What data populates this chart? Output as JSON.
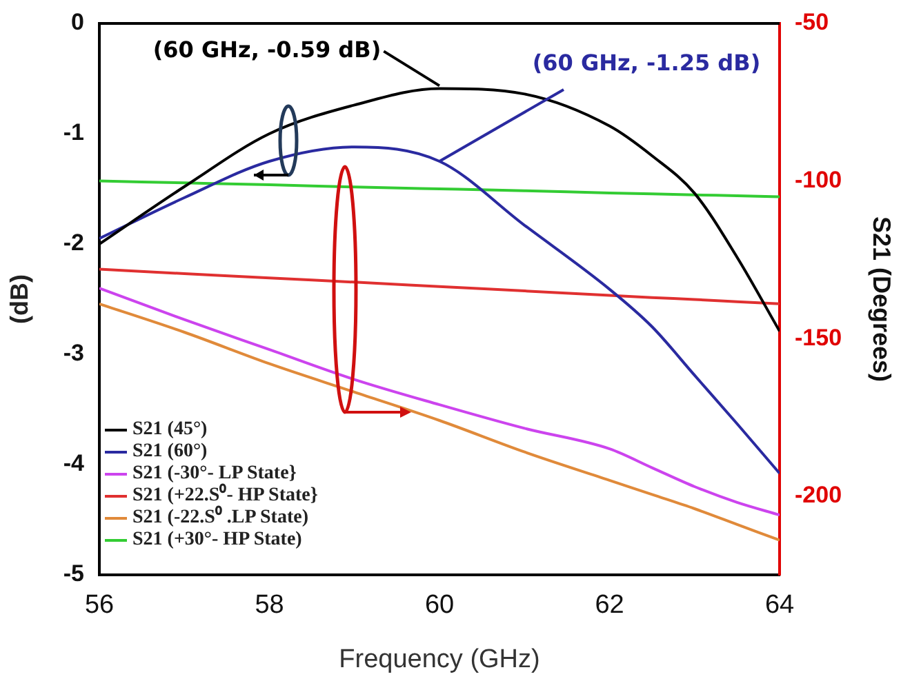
{
  "chart_data": {
    "type": "line",
    "xlabel": "Frequency (GHz)",
    "ylabel": "(dB)",
    "y2label": "S21 (Degrees)",
    "x": [
      56,
      57,
      58,
      59,
      60,
      61,
      62,
      62.5,
      63,
      63.5,
      64
    ],
    "xlim": [
      56,
      64
    ],
    "xticks": [
      56,
      58,
      60,
      62,
      64
    ],
    "ylim": [
      -5,
      0
    ],
    "yticks": [
      0,
      -1,
      -2,
      -3,
      -4,
      -5
    ],
    "y2lim": [
      -225,
      -50
    ],
    "y2ticks": [
      -50,
      -100,
      -150,
      -200
    ],
    "grid": false,
    "legend": "bottom left",
    "marker": "none",
    "line_style": "solid",
    "series": [
      {
        "name": "S21 (45°)",
        "color": "#000000",
        "values": [
          -2.0,
          -1.48,
          -1.0,
          -0.74,
          -0.59,
          -0.64,
          -0.93,
          -1.2,
          -1.54,
          -2.12,
          -2.79
        ]
      },
      {
        "name": "S21 (60°)",
        "color": "#2a2aa0",
        "values": [
          -1.95,
          -1.58,
          -1.25,
          -1.12,
          -1.25,
          -1.83,
          -2.41,
          -2.75,
          -3.19,
          -3.63,
          -4.08
        ]
      },
      {
        "name": "S21 (-30°- LP State}",
        "color": "#cc44ee",
        "axis": "y2",
        "values": [
          -134,
          -144,
          -153.5,
          -163,
          -171,
          -178.5,
          -185,
          -191,
          -197,
          -202,
          -206
        ]
      },
      {
        "name": "S21 (+22.S⁰- HP State}",
        "color": "#e03030",
        "axis": "y2",
        "values": [
          -128,
          -129.4,
          -130.8,
          -132.1,
          -133.5,
          -134.9,
          -136.3,
          -137,
          -137.6,
          -138.3,
          -139
        ]
      },
      {
        "name": "S21 (-22.S⁰ .LP State)",
        "color": "#e08a3a",
        "axis": "y2",
        "values": [
          -139,
          -148,
          -158,
          -167,
          -176,
          -186,
          -195,
          -199.5,
          -204,
          -209,
          -214
        ]
      },
      {
        "name": "S21 (+30°- HP State)",
        "color": "#33cc33",
        "axis": "y2",
        "values": [
          -100,
          -100.6,
          -101.2,
          -101.9,
          -102.5,
          -103.1,
          -103.8,
          -104.1,
          -104.4,
          -104.7,
          -105
        ]
      }
    ],
    "annotations": [
      {
        "text": "(60 GHz, -0.59 dB)",
        "x": 60,
        "y": -0.59
      },
      {
        "text": "(60 GHz, -1.25 dB)",
        "x": 60,
        "y": -1.25
      }
    ]
  }
}
